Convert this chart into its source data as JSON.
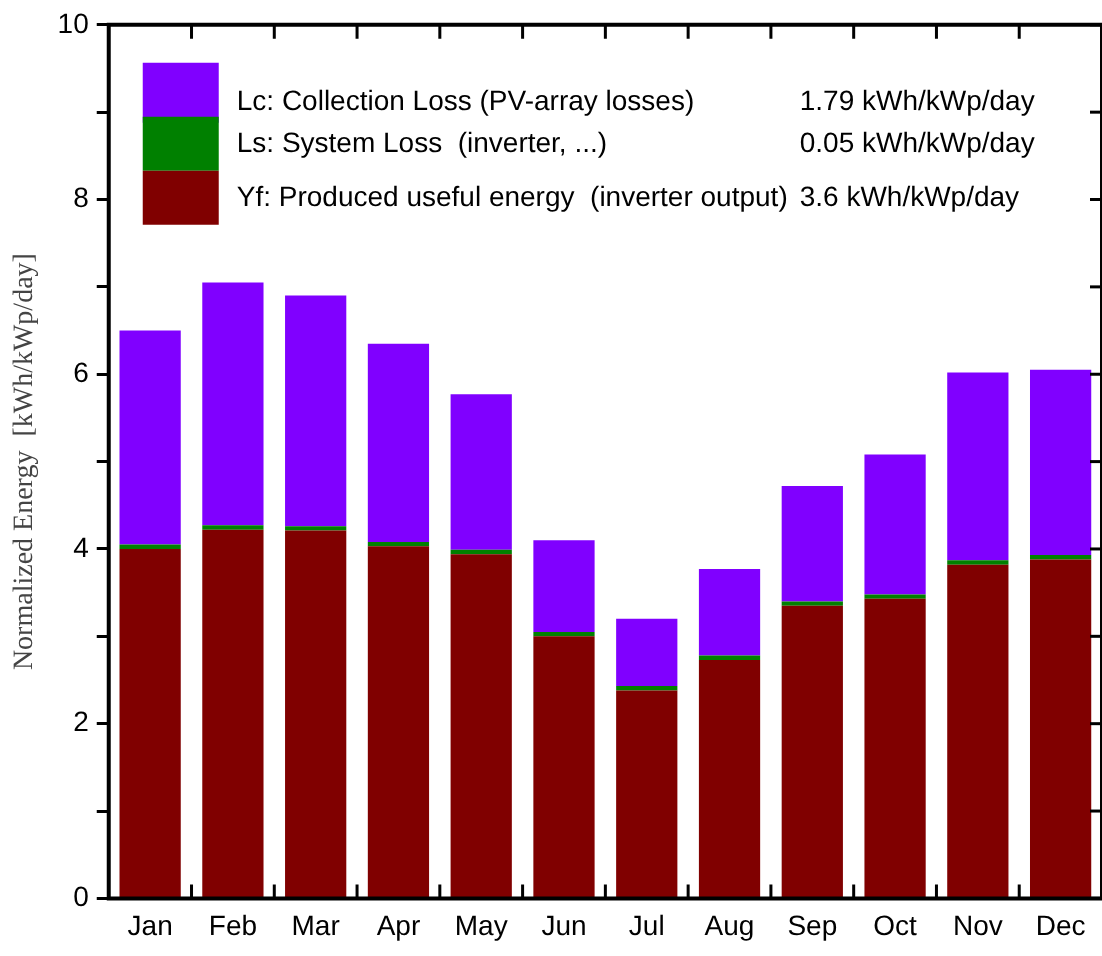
{
  "chart_data": {
    "type": "bar",
    "ylabel": "Normalized Energy  [kWh/kWp/day]",
    "categories": [
      "Jan",
      "Feb",
      "Mar",
      "Apr",
      "May",
      "Jun",
      "Jul",
      "Aug",
      "Sep",
      "Oct",
      "Nov",
      "Dec"
    ],
    "series": [
      {
        "name": "Yf: Produced useful energy  (inverter output)",
        "color": "#800000",
        "values": [
          4.0,
          4.22,
          4.21,
          4.03,
          3.94,
          3.0,
          2.38,
          2.73,
          3.35,
          3.43,
          3.82,
          3.88
        ]
      },
      {
        "name": "Ls: System Loss  (inverter, ...)",
        "color": "#008000",
        "values": [
          0.05,
          0.05,
          0.05,
          0.05,
          0.05,
          0.05,
          0.05,
          0.05,
          0.05,
          0.05,
          0.05,
          0.05
        ]
      },
      {
        "name": "Lc: Collection Loss (PV-array losses)",
        "color": "#8000ff",
        "values": [
          2.45,
          2.78,
          2.64,
          2.27,
          1.78,
          1.05,
          0.77,
          0.99,
          1.32,
          1.6,
          2.15,
          2.12
        ]
      }
    ],
    "stacked": true,
    "ylim": [
      0,
      10
    ],
    "yticks": [
      0,
      {
        "value": 1,
        "label": null
      },
      2,
      {
        "value": 3,
        "label": null
      },
      4,
      {
        "value": 5,
        "label": null
      },
      6,
      {
        "value": 7,
        "label": null
      },
      8,
      {
        "value": 9,
        "label": null
      },
      10
    ],
    "grid": false,
    "legend": "top left",
    "annotations": [
      "3.6 kWh/kWp/day",
      "0.05 kWh/kWp/day",
      "1.79 kWh/kWp/day"
    ]
  }
}
